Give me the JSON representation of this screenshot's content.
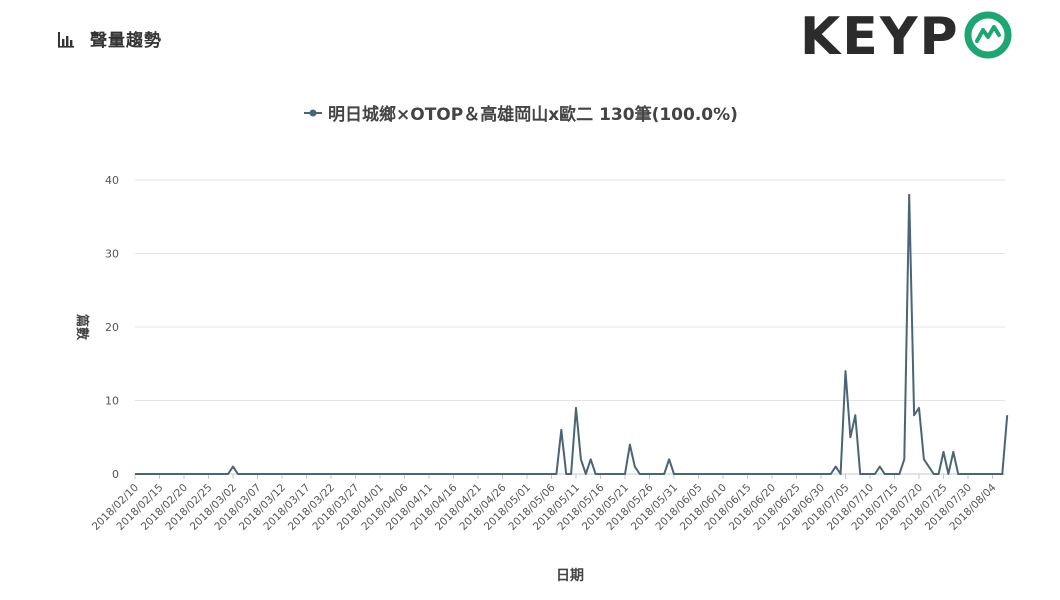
{
  "header": {
    "icon": "bar-chart-icon",
    "title": "聲量趨勢"
  },
  "logo": {
    "text_main": "KEYP",
    "icon": "keypo-o-logo-icon",
    "colors": {
      "dark": "#2c2c2c",
      "green": "#1ea672"
    }
  },
  "chart_data": {
    "type": "line",
    "title": "",
    "legend": {
      "label": "明日城鄉×OTOP＆高雄岡山x歐二 130筆(100.0%)",
      "placement": "top-center"
    },
    "xlabel": "日期",
    "ylabel": "篇數",
    "ylim": [
      0,
      40
    ],
    "yticks": [
      0,
      10,
      20,
      30,
      40
    ],
    "grid": true,
    "color": "#4a6478",
    "x_start": "2018-02-10",
    "xtick_labels": [
      "2018/02/10",
      "2018/02/15",
      "2018/02/20",
      "2018/02/25",
      "2018/03/02",
      "2018/03/07",
      "2018/03/12",
      "2018/03/17",
      "2018/03/22",
      "2018/03/27",
      "2018/04/01",
      "2018/04/06",
      "2018/04/11",
      "2018/04/16",
      "2018/04/21",
      "2018/04/26",
      "2018/05/01",
      "2018/05/06",
      "2018/05/11",
      "2018/05/16",
      "2018/05/21",
      "2018/05/26",
      "2018/05/31",
      "2018/06/05",
      "2018/06/10",
      "2018/06/15",
      "2018/06/20",
      "2018/06/25",
      "2018/06/30",
      "2018/07/05",
      "2018/07/10",
      "2018/07/15",
      "2018/07/20",
      "2018/07/25",
      "2018/07/30",
      "2018/08/04"
    ],
    "series": [
      {
        "name": "明日城鄉×OTOP＆高雄岡山x歐二",
        "points": [
          [
            "2018-02-10",
            0
          ],
          [
            "2018-03-01",
            0
          ],
          [
            "2018-03-02",
            1
          ],
          [
            "2018-03-03",
            0
          ],
          [
            "2018-05-07",
            0
          ],
          [
            "2018-05-08",
            6
          ],
          [
            "2018-05-09",
            0
          ],
          [
            "2018-05-10",
            0
          ],
          [
            "2018-05-11",
            9
          ],
          [
            "2018-05-12",
            2
          ],
          [
            "2018-05-13",
            0
          ],
          [
            "2018-05-14",
            2
          ],
          [
            "2018-05-15",
            0
          ],
          [
            "2018-05-21",
            0
          ],
          [
            "2018-05-22",
            4
          ],
          [
            "2018-05-23",
            1
          ],
          [
            "2018-05-24",
            0
          ],
          [
            "2018-05-29",
            0
          ],
          [
            "2018-05-30",
            2
          ],
          [
            "2018-05-31",
            0
          ],
          [
            "2018-07-02",
            0
          ],
          [
            "2018-07-03",
            1
          ],
          [
            "2018-07-04",
            0
          ],
          [
            "2018-07-05",
            14
          ],
          [
            "2018-07-06",
            5
          ],
          [
            "2018-07-07",
            8
          ],
          [
            "2018-07-08",
            0
          ],
          [
            "2018-07-11",
            0
          ],
          [
            "2018-07-12",
            1
          ],
          [
            "2018-07-13",
            0
          ],
          [
            "2018-07-16",
            0
          ],
          [
            "2018-07-17",
            2
          ],
          [
            "2018-07-18",
            38
          ],
          [
            "2018-07-19",
            8
          ],
          [
            "2018-07-20",
            9
          ],
          [
            "2018-07-21",
            2
          ],
          [
            "2018-07-22",
            1
          ],
          [
            "2018-07-23",
            0
          ],
          [
            "2018-07-24",
            0
          ],
          [
            "2018-07-25",
            3
          ],
          [
            "2018-07-26",
            0
          ],
          [
            "2018-07-27",
            3
          ],
          [
            "2018-07-28",
            0
          ],
          [
            "2018-08-06",
            0
          ],
          [
            "2018-08-07",
            8
          ]
        ]
      }
    ]
  }
}
